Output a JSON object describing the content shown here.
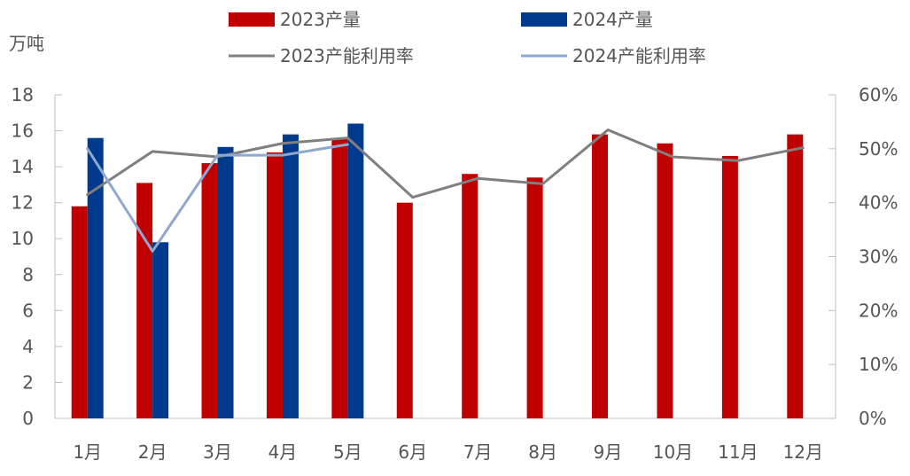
{
  "chart_data": {
    "type": "bar",
    "categories": [
      "1月",
      "2月",
      "3月",
      "4月",
      "5月",
      "6月",
      "7月",
      "8月",
      "9月",
      "10月",
      "11月",
      "12月"
    ],
    "y_unit": "万吨",
    "ylim": [
      0,
      18
    ],
    "yticks": [
      0,
      2,
      4,
      6,
      8,
      10,
      12,
      14,
      16,
      18
    ],
    "y2lim": [
      0,
      60
    ],
    "y2ticks": [
      "0%",
      "10%",
      "20%",
      "30%",
      "40%",
      "50%",
      "60%"
    ],
    "grid": false,
    "legend_position": "top",
    "bar_series": [
      {
        "name": "2023产量",
        "color": "#c00000",
        "values": [
          11.8,
          13.1,
          14.2,
          14.8,
          15.6,
          12.0,
          13.6,
          13.4,
          15.8,
          15.3,
          14.6,
          15.8
        ]
      },
      {
        "name": "2024产量",
        "color": "#003a8c",
        "values": [
          15.6,
          9.8,
          15.1,
          15.8,
          16.4,
          null,
          null,
          null,
          null,
          null,
          null,
          null
        ]
      }
    ],
    "line_series": [
      {
        "name": "2023产能利用率",
        "color": "#7f7f7f",
        "axis": "right",
        "values": [
          41.5,
          49.5,
          48.5,
          51.0,
          52.0,
          41.0,
          44.5,
          43.5,
          53.5,
          48.5,
          47.8,
          50.2
        ]
      },
      {
        "name": "2024产能利用率",
        "color": "#8fa8d0",
        "axis": "right",
        "values": [
          50.0,
          31.0,
          48.8,
          48.8,
          50.8,
          null,
          null,
          null,
          null,
          null,
          null,
          null
        ]
      }
    ]
  }
}
